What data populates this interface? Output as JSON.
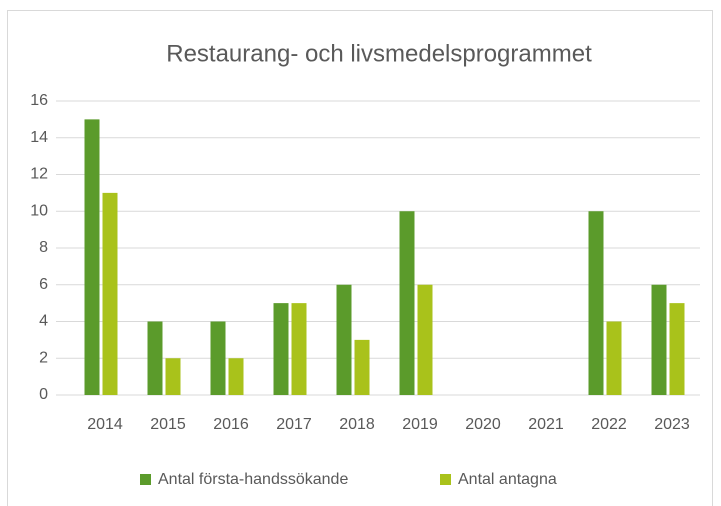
{
  "chart_data": {
    "type": "bar",
    "title": "Restaurang- och livsmedelsprogrammet",
    "categories": [
      "2014",
      "2015",
      "2016",
      "2017",
      "2018",
      "2019",
      "2020",
      "2021",
      "2022",
      "2023"
    ],
    "series": [
      {
        "name": "Antal första-handssökande",
        "color": "#5b9b2b",
        "values": [
          15,
          4,
          4,
          5,
          6,
          10,
          0,
          0,
          10,
          6
        ]
      },
      {
        "name": "Antal antagna",
        "color": "#a9c21b",
        "values": [
          11,
          2,
          2,
          5,
          3,
          6,
          0,
          0,
          4,
          5
        ]
      }
    ],
    "ylim": [
      0,
      16
    ],
    "yticks": [
      0,
      2,
      4,
      6,
      8,
      10,
      12,
      14,
      16
    ],
    "grid": true,
    "legend": "bottom"
  }
}
